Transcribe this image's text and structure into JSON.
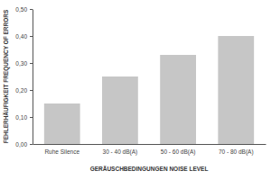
{
  "chart_data": {
    "type": "bar",
    "x_label": "GERÄUSCHBEDINGUNGEN NOISE LEVEL",
    "y_label": "FEHLERHÄUFIGKEIT FREQUENCY OF ERRORS",
    "categories": [
      "Ruhe Silence",
      "30 - 40 dB(A)",
      "50 - 60 dB(A)",
      "70 - 80 dB(A)"
    ],
    "values": [
      0.15,
      0.25,
      0.33,
      0.4
    ],
    "color": "#c6c6c6",
    "ylim": [
      0,
      0.5
    ],
    "yticks": [
      {
        "value": 0,
        "label": "0,00"
      },
      {
        "value": 0.1,
        "label": "0,10"
      },
      {
        "value": 0.2,
        "label": "0,20"
      },
      {
        "value": 0.3,
        "label": "0,30"
      },
      {
        "value": 0.4,
        "label": "0,40"
      },
      {
        "value": 0.5,
        "label": "0,50"
      }
    ],
    "grid": false
  }
}
